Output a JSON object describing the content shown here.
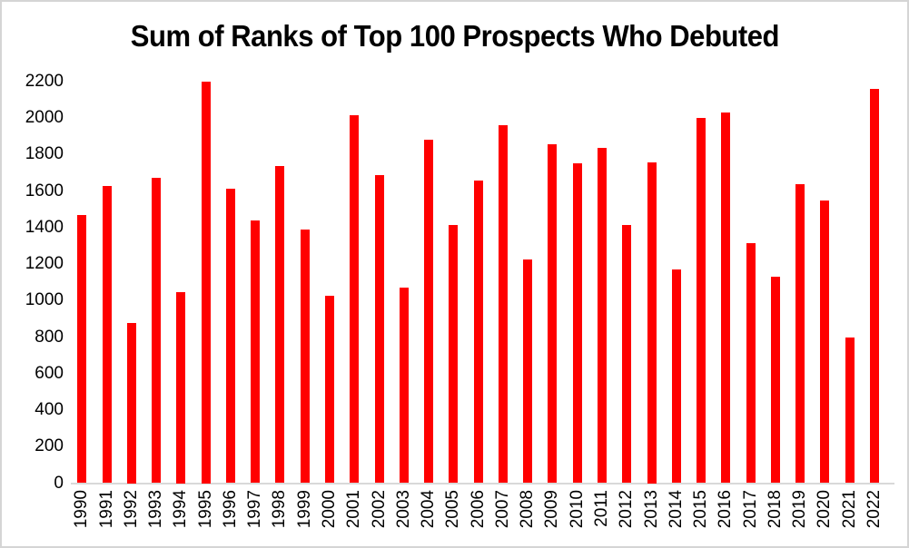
{
  "chart_data": {
    "type": "bar",
    "title": "Sum of Ranks of Top 100 Prospects Who Debuted",
    "categories": [
      "1990",
      "1991",
      "1992",
      "1993",
      "1994",
      "1995",
      "1996",
      "1997",
      "1998",
      "1999",
      "2000",
      "2001",
      "2002",
      "2003",
      "2004",
      "2005",
      "2006",
      "2007",
      "2008",
      "2009",
      "2010",
      "2011",
      "2012",
      "2013",
      "2014",
      "2015",
      "2016",
      "2017",
      "2018",
      "2019",
      "2020",
      "2021",
      "2022"
    ],
    "values": [
      1470,
      1630,
      880,
      1675,
      1045,
      2200,
      1615,
      1440,
      1740,
      1390,
      1025,
      2015,
      1690,
      1070,
      1880,
      1415,
      1660,
      1960,
      1225,
      1855,
      1755,
      1835,
      1415,
      1760,
      1170,
      2000,
      2030,
      1315,
      1130,
      1640,
      1550,
      800,
      2160
    ],
    "xlabel": "",
    "ylabel": "",
    "ylim": [
      0,
      2200
    ],
    "ytick_step": 200,
    "ytick_labels": [
      "0",
      "200",
      "400",
      "600",
      "800",
      "1000",
      "1200",
      "1400",
      "1600",
      "1800",
      "2000",
      "2200"
    ],
    "grid": false,
    "legend": "none",
    "bar_color": "#FF0000",
    "axis_line_color": "#D9D9D9",
    "label_color": "#000000",
    "title_color": "#000000",
    "frame_border_color": "#D5D5D5",
    "background_color": "#FFFFFF"
  }
}
